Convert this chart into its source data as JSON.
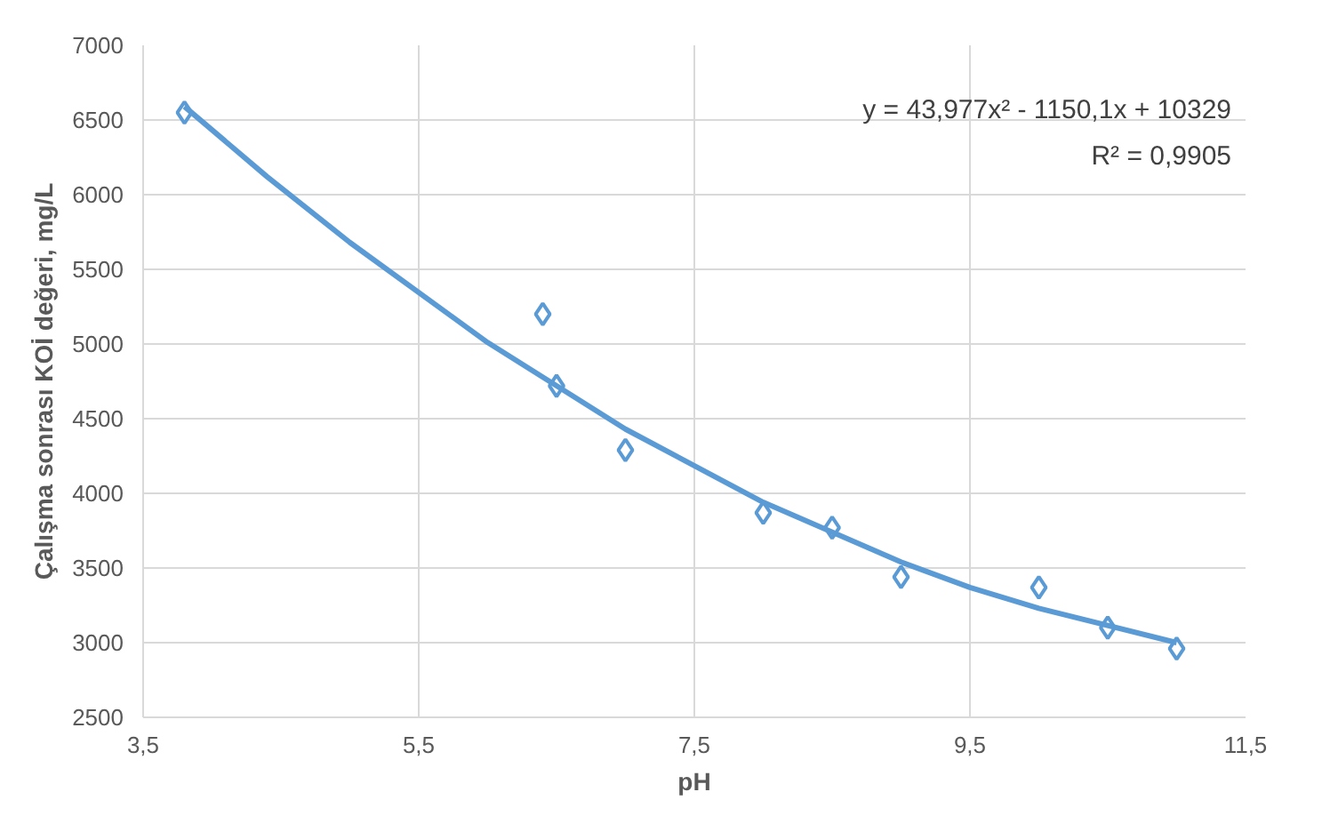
{
  "chart_data": {
    "type": "scatter",
    "xlabel": "pH",
    "ylabel": "Çalışma sonrası KOİ değeri, mg/L",
    "xlim": [
      3.5,
      11.5
    ],
    "ylim": [
      2500,
      7000
    ],
    "xticks": [
      {
        "value": 3.5,
        "label": "3,5"
      },
      {
        "value": 5.5,
        "label": "5,5"
      },
      {
        "value": 7.5,
        "label": "7,5"
      },
      {
        "value": 9.5,
        "label": "9,5"
      },
      {
        "value": 11.5,
        "label": "11,5"
      }
    ],
    "yticks": [
      2500,
      3000,
      3500,
      4000,
      4500,
      5000,
      5500,
      6000,
      6500,
      7000
    ],
    "grid": true,
    "marker": "diamond",
    "annotations": [
      "y = 43,977x² - 1150,1x + 10329",
      "R² = 0,9905"
    ],
    "series": [
      {
        "color": "#5b9bd5",
        "x": [
          3.8,
          6.4,
          6.5,
          7.0,
          8.0,
          8.5,
          9.0,
          10.0,
          10.5,
          11.0
        ],
        "values": [
          6550,
          5200,
          4720,
          4290,
          3870,
          3770,
          3440,
          3370,
          3100,
          2960
        ]
      },
      {
        "type": "line",
        "color": "#5b9bd5",
        "marker": "none",
        "line_style": "solid",
        "x": [
          3.8,
          4.4,
          5,
          6,
          7,
          8,
          9,
          9.5,
          10,
          11
        ],
        "values": [
          6590,
          6120,
          5680,
          5010,
          4430,
          3940,
          3540,
          3370,
          3230,
          3000
        ]
      }
    ]
  }
}
